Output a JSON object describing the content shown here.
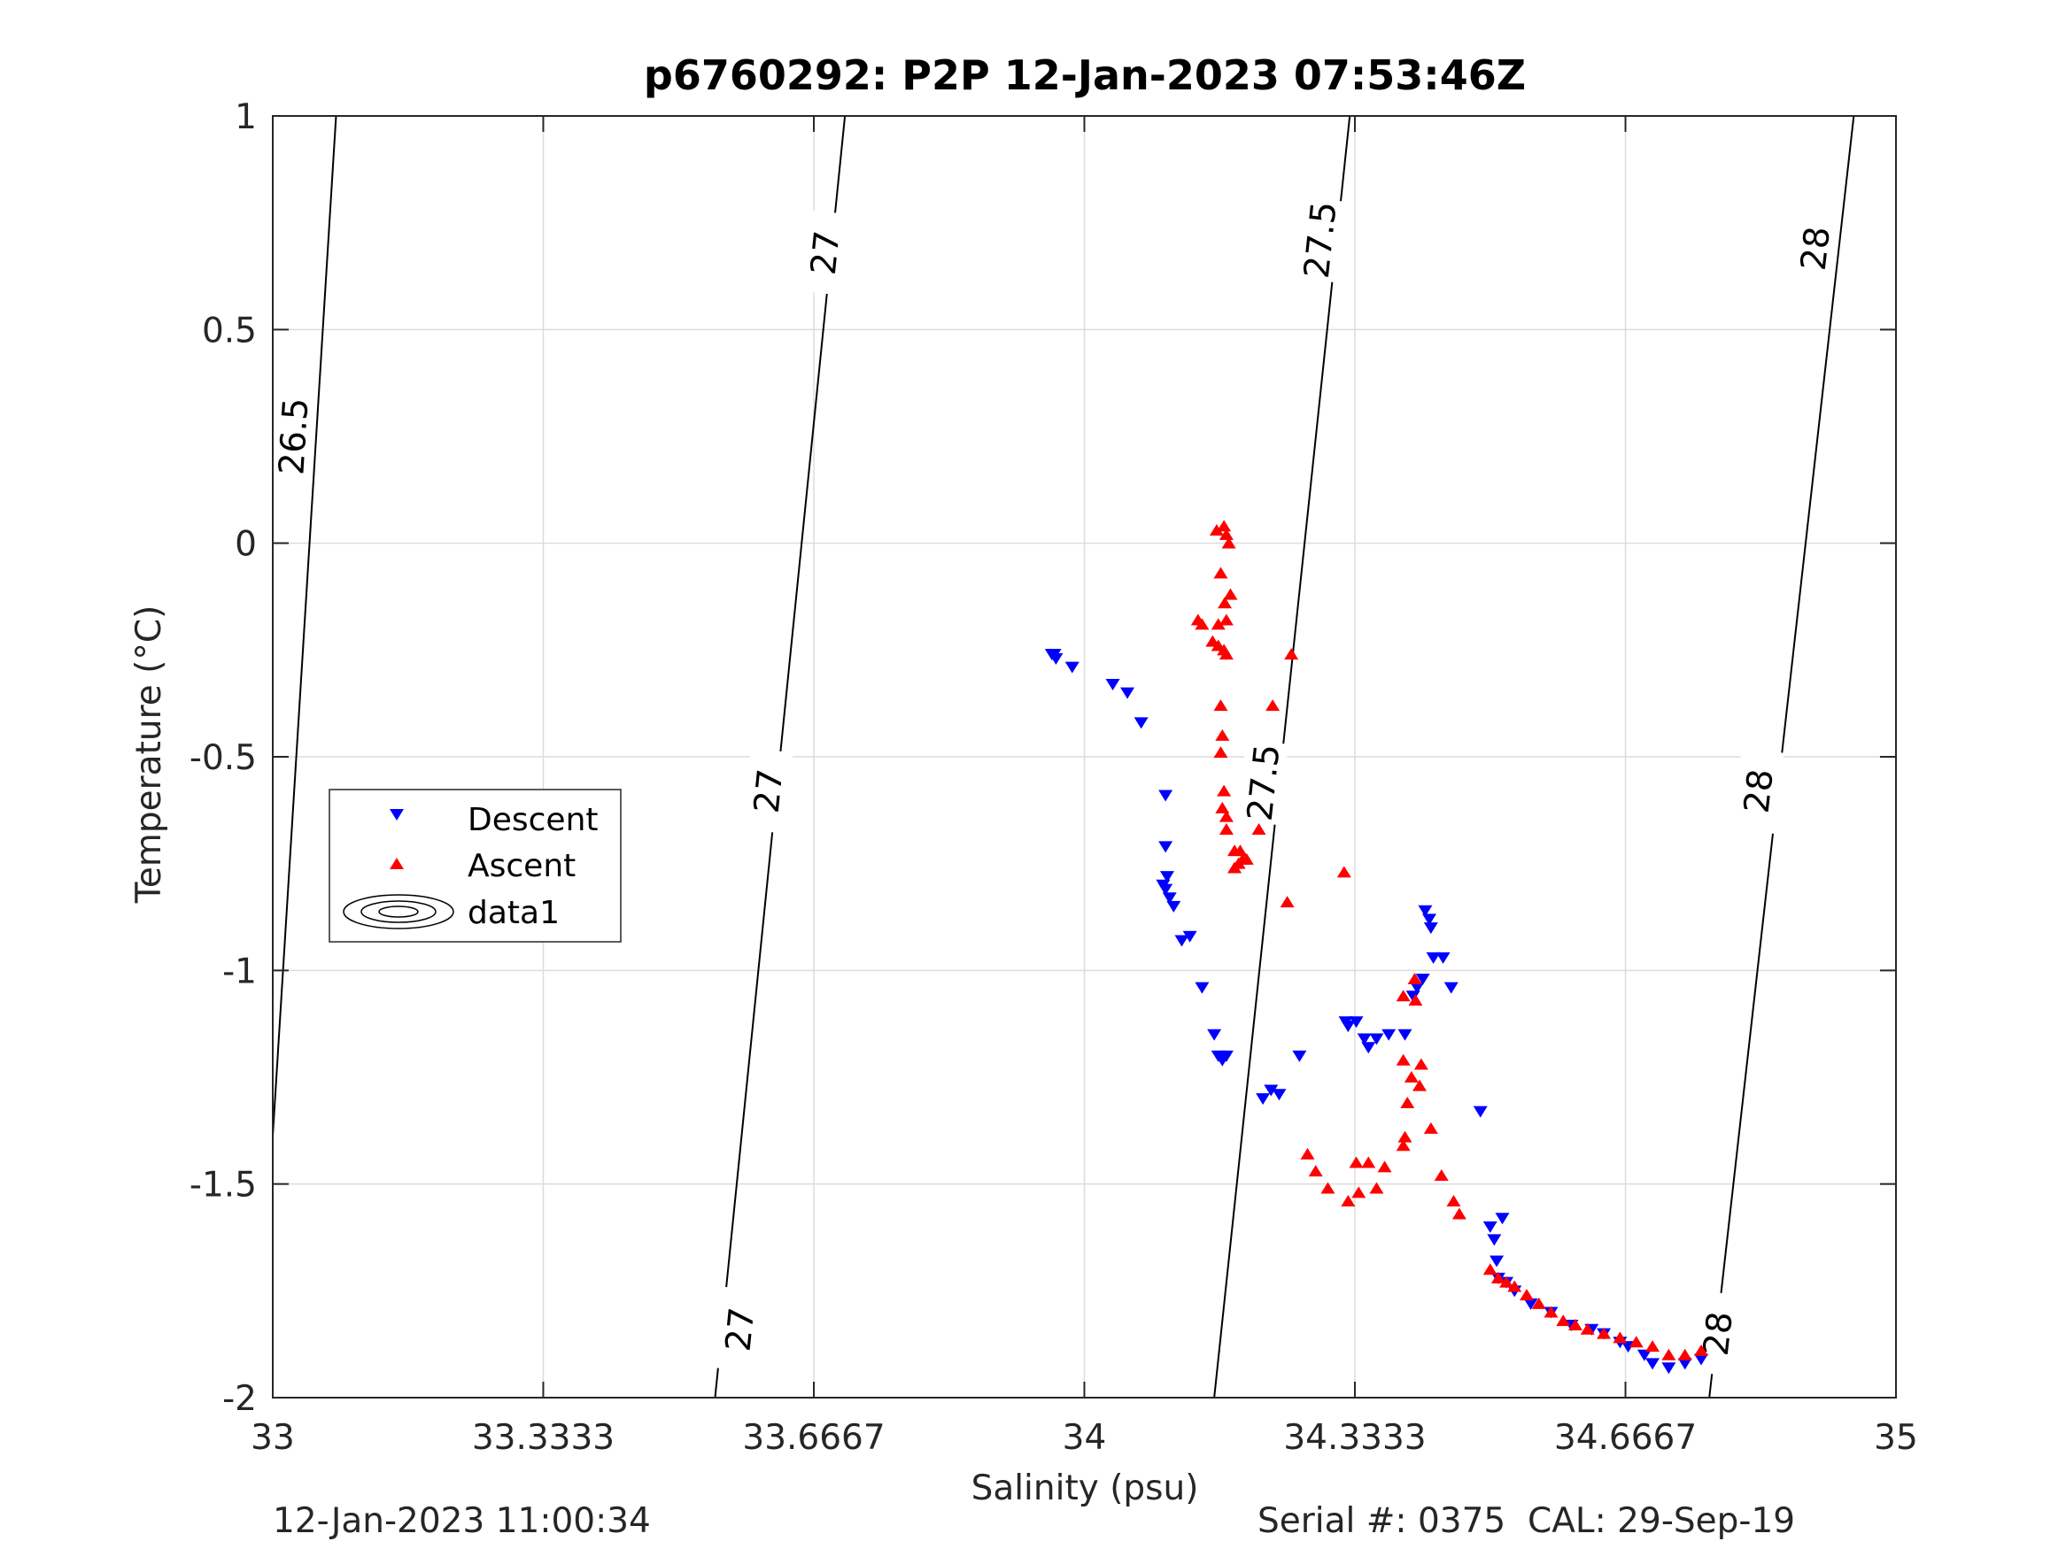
{
  "chart_data": {
    "type": "scatter",
    "title": "p6760292: P2P 12-Jan-2023 07:53:46Z",
    "xlabel": "Salinity (psu)",
    "ylabel": "Temperature (°C)",
    "xlim": [
      33,
      35
    ],
    "ylim": [
      -2,
      1
    ],
    "xticks": [
      33,
      33.3333,
      33.6667,
      34,
      34.3333,
      34.6667,
      35
    ],
    "xtick_labels": [
      "33",
      "33.3333",
      "33.6667",
      "34",
      "34.3333",
      "34.6667",
      "35"
    ],
    "yticks": [
      -2,
      -1.5,
      -1,
      -0.5,
      0,
      0.5,
      1
    ],
    "ytick_labels": [
      "-2",
      "-1.5",
      "-1",
      "-0.5",
      "0",
      "0.5",
      "1"
    ],
    "grid": true,
    "legend_position": "left",
    "legend": [
      "Descent",
      "Ascent",
      "data1"
    ],
    "series": [
      {
        "name": "Descent",
        "marker": "triangle-down",
        "color": "#0000ff",
        "x": [
          33.96,
          33.963,
          33.965,
          33.985,
          34.035,
          34.053,
          34.07,
          34.1,
          34.1,
          34.102,
          34.097,
          34.1,
          34.105,
          34.11,
          34.12,
          34.13,
          34.145,
          34.16,
          34.165,
          34.17,
          34.175,
          34.22,
          34.23,
          34.24,
          34.265,
          34.322,
          34.325,
          34.335,
          34.345,
          34.35,
          34.36,
          34.375,
          34.395,
          34.405,
          34.41,
          34.417,
          34.42,
          34.425,
          34.427,
          34.43,
          34.442,
          34.452,
          34.488,
          34.5,
          34.505,
          34.508,
          34.51,
          34.515,
          34.52,
          34.53,
          34.55,
          34.575,
          34.6,
          34.625,
          34.64,
          34.66,
          34.67,
          34.69,
          34.7,
          34.72,
          34.74,
          34.76
        ],
        "y": [
          -0.26,
          -0.26,
          -0.27,
          -0.29,
          -0.33,
          -0.35,
          -0.42,
          -0.59,
          -0.71,
          -0.78,
          -0.8,
          -0.81,
          -0.83,
          -0.85,
          -0.93,
          -0.92,
          -1.04,
          -1.15,
          -1.2,
          -1.21,
          -1.2,
          -1.3,
          -1.28,
          -1.29,
          -1.2,
          -1.12,
          -1.13,
          -1.12,
          -1.16,
          -1.18,
          -1.16,
          -1.15,
          -1.15,
          -1.06,
          -1.04,
          -1.02,
          -0.86,
          -0.88,
          -0.9,
          -0.97,
          -0.97,
          -1.04,
          -1.33,
          -1.6,
          -1.63,
          -1.68,
          -1.72,
          -1.58,
          -1.73,
          -1.75,
          -1.78,
          -1.8,
          -1.83,
          -1.84,
          -1.85,
          -1.87,
          -1.88,
          -1.9,
          -1.92,
          -1.93,
          -1.92,
          -1.91
        ]
      },
      {
        "name": "Ascent",
        "marker": "triangle-up",
        "color": "#ff0000",
        "x": [
          34.163,
          34.172,
          34.178,
          34.175,
          34.168,
          34.18,
          34.173,
          34.175,
          34.165,
          34.145,
          34.14,
          34.158,
          34.165,
          34.172,
          34.175,
          34.168,
          34.255,
          34.232,
          34.17,
          34.168,
          34.172,
          34.17,
          34.175,
          34.175,
          34.185,
          34.19,
          34.215,
          34.2,
          34.185,
          34.192,
          34.195,
          34.32,
          34.25,
          34.407,
          34.393,
          34.408,
          34.393,
          34.403,
          34.413,
          34.398,
          34.393,
          34.37,
          34.35,
          34.335,
          34.3,
          34.285,
          34.275,
          34.36,
          34.338,
          34.325,
          34.395,
          34.415,
          34.427,
          34.44,
          34.455,
          34.462,
          34.5,
          34.51,
          34.52,
          34.53,
          34.545,
          34.56,
          34.575,
          34.59,
          34.605,
          34.62,
          34.64,
          34.66,
          34.68,
          34.7,
          34.72,
          34.74,
          34.76
        ],
        "y": [
          0.03,
          0.04,
          0.0,
          0.02,
          -0.07,
          -0.12,
          -0.14,
          -0.18,
          -0.19,
          -0.19,
          -0.18,
          -0.23,
          -0.24,
          -0.25,
          -0.26,
          -0.38,
          -0.26,
          -0.38,
          -0.45,
          -0.49,
          -0.58,
          -0.62,
          -0.64,
          -0.67,
          -0.72,
          -0.75,
          -0.67,
          -0.74,
          -0.76,
          -0.72,
          -0.74,
          -0.77,
          -0.84,
          -1.02,
          -1.06,
          -1.07,
          -1.21,
          -1.25,
          -1.27,
          -1.31,
          -1.41,
          -1.46,
          -1.45,
          -1.45,
          -1.51,
          -1.47,
          -1.43,
          -1.51,
          -1.52,
          -1.54,
          -1.39,
          -1.22,
          -1.37,
          -1.48,
          -1.54,
          -1.57,
          -1.7,
          -1.72,
          -1.73,
          -1.74,
          -1.76,
          -1.78,
          -1.8,
          -1.82,
          -1.83,
          -1.84,
          -1.85,
          -1.86,
          -1.87,
          -1.88,
          -1.9,
          -1.9,
          -1.89
        ]
      }
    ],
    "isopycnals": [
      {
        "label": "26.5",
        "x_at_ymin": 32.98,
        "x_at_ymax": 33.078,
        "label_positions": [
          [
            33.025,
            0.25
          ]
        ]
      },
      {
        "label": "27",
        "x_at_ymin": 33.545,
        "x_at_ymax": 33.705,
        "label_positions": [
          [
            33.575,
            -1.84
          ],
          [
            33.61,
            -0.58
          ],
          [
            33.68,
            0.68
          ]
        ]
      },
      {
        "label": "27.5",
        "x_at_ymin": 34.16,
        "x_at_ymax": 34.327,
        "label_positions": [
          [
            34.22,
            -0.56
          ],
          [
            34.29,
            0.71
          ]
        ]
      },
      {
        "label": "28",
        "x_at_ymin": 34.77,
        "x_at_ymax": 34.948,
        "label_positions": [
          [
            34.78,
            -1.85
          ],
          [
            34.83,
            -0.58
          ],
          [
            34.9,
            0.69
          ]
        ]
      }
    ],
    "footer_left": "12-Jan-2023 11:00:34",
    "footer_right": "Serial #: 0375  CAL: 29-Sep-19"
  }
}
